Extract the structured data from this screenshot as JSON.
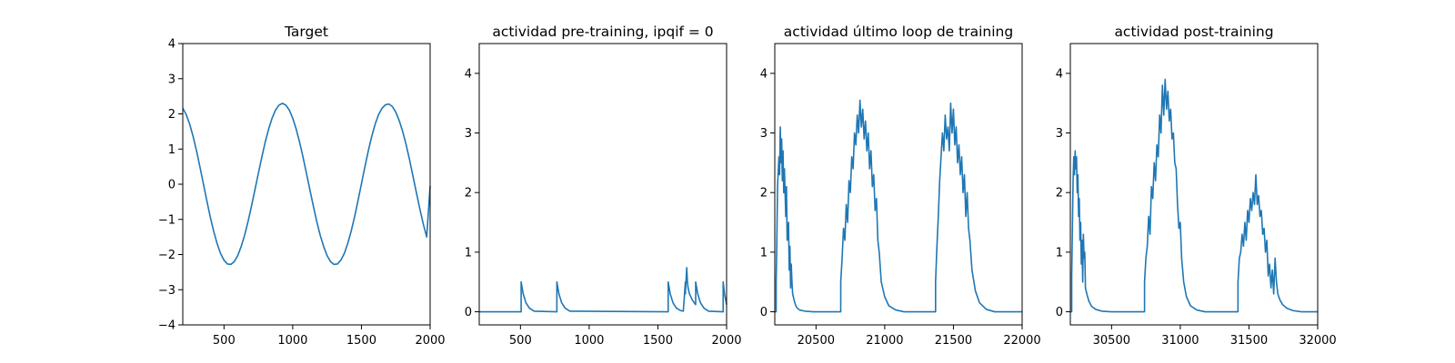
{
  "chart_data": [
    {
      "type": "line",
      "title": "Target",
      "xlabel": "",
      "ylabel": "",
      "xlim": [
        200,
        2000
      ],
      "ylim": [
        -4,
        4
      ],
      "xticks": [
        500,
        1000,
        1500,
        2000
      ],
      "xtick_labels": [
        "500",
        "1000",
        "1500",
        "2000"
      ],
      "yticks": [
        -4,
        -3,
        -2,
        -1,
        0,
        1,
        2,
        3,
        4
      ],
      "ytick_labels": [
        "−4",
        "−3",
        "−2",
        "−1",
        "0",
        "1",
        "2",
        "3",
        "4"
      ],
      "grid": false,
      "legend": "none",
      "color": "#1f77b4",
      "series": [
        {
          "x": [
            200,
            225,
            250,
            275,
            300,
            325,
            350,
            375,
            400,
            425,
            450,
            475,
            500,
            525,
            550,
            575,
            600,
            625,
            650,
            675,
            700,
            725,
            750,
            775,
            800,
            825,
            850,
            875,
            900,
            925,
            950,
            975,
            1000,
            1025,
            1050,
            1075,
            1100,
            1125,
            1150,
            1175,
            1200,
            1225,
            1250,
            1275,
            1300,
            1325,
            1350,
            1375,
            1400,
            1425,
            1450,
            1475,
            1500,
            1525,
            1550,
            1575,
            1600,
            1625,
            1650,
            1675,
            1700,
            1725,
            1750,
            1775,
            1800,
            1825,
            1850,
            1875,
            1900,
            1925,
            1950,
            1975,
            2000
          ],
          "y": [
            2.16,
            1.98,
            1.71,
            1.36,
            0.95,
            0.49,
            0.01,
            -0.47,
            -0.93,
            -1.34,
            -1.69,
            -1.97,
            -2.16,
            -2.27,
            -2.28,
            -2.2,
            -2.03,
            -1.77,
            -1.45,
            -1.06,
            -0.62,
            -0.16,
            0.31,
            0.77,
            1.2,
            1.57,
            1.88,
            2.11,
            2.25,
            2.3,
            2.25,
            2.11,
            1.88,
            1.57,
            1.2,
            0.77,
            0.31,
            -0.16,
            -0.62,
            -1.06,
            -1.45,
            -1.77,
            -2.03,
            -2.2,
            -2.28,
            -2.27,
            -2.16,
            -1.97,
            -1.69,
            -1.34,
            -0.93,
            -0.47,
            0.01,
            0.49,
            0.95,
            1.36,
            1.71,
            1.98,
            2.16,
            2.26,
            2.28,
            2.21,
            2.05,
            1.81,
            1.5,
            1.13,
            0.7,
            0.23,
            -0.24,
            -0.7,
            -1.13,
            -1.5,
            -0.05
          ]
        }
      ]
    },
    {
      "type": "line",
      "title": "actividad pre-training, ipqif = 0",
      "xlabel": "",
      "ylabel": "",
      "xlim": [
        200,
        2000
      ],
      "ylim": [
        -0.22,
        4.5
      ],
      "xticks": [
        500,
        1000,
        1500,
        2000
      ],
      "xtick_labels": [
        "500",
        "1000",
        "1500",
        "2000"
      ],
      "yticks": [
        0,
        1,
        2,
        3,
        4
      ],
      "ytick_labels": [
        "0",
        "1",
        "2",
        "3",
        "4"
      ],
      "grid": false,
      "legend": "none",
      "color": "#1f77b4",
      "series": [
        {
          "x": [
            200,
            505,
            505,
            520,
            540,
            565,
            600,
            765,
            765,
            780,
            800,
            825,
            860,
            1575,
            1575,
            1590,
            1610,
            1635,
            1665,
            1685,
            1700,
            1700,
            1710,
            1715,
            1720,
            1730,
            1750,
            1765,
            1775,
            1775,
            1790,
            1810,
            1835,
            1870,
            1975,
            1975,
            1985,
            1995,
            2000
          ],
          "y": [
            0,
            0,
            0.5,
            0.3,
            0.15,
            0.06,
            0.01,
            0,
            0.5,
            0.3,
            0.15,
            0.06,
            0.01,
            0,
            0.5,
            0.3,
            0.15,
            0.06,
            0.02,
            0.01,
            0.5,
            0.3,
            0.74,
            0.5,
            0.4,
            0.3,
            0.2,
            0.15,
            0.12,
            0.5,
            0.3,
            0.15,
            0.06,
            0.01,
            0,
            0.5,
            0.3,
            0.18,
            0.12
          ]
        }
      ]
    },
    {
      "type": "line",
      "title": "actividad último loop de training",
      "xlabel": "",
      "ylabel": "",
      "xlim": [
        20200,
        22000
      ],
      "ylim": [
        -0.22,
        4.5
      ],
      "xticks": [
        20500,
        21000,
        21500,
        22000
      ],
      "xtick_labels": [
        "20500",
        "21000",
        "21500",
        "22000"
      ],
      "yticks": [
        0,
        1,
        2,
        3,
        4
      ],
      "ytick_labels": [
        "0",
        "1",
        "2",
        "3",
        "4"
      ],
      "grid": false,
      "legend": "none",
      "color": "#1f77b4",
      "series": [
        {
          "x": [
            20200,
            20210,
            20210,
            20215,
            20220,
            20230,
            20235,
            20240,
            20245,
            20250,
            20255,
            20260,
            20265,
            20270,
            20280,
            20285,
            20290,
            20300,
            20305,
            20310,
            20315,
            20320,
            20325,
            20330,
            20340,
            20350,
            20360,
            20380,
            20420,
            20480,
            20680,
            20680,
            20690,
            20700,
            20710,
            20720,
            20730,
            20740,
            20750,
            20760,
            20770,
            20780,
            20790,
            20800,
            20810,
            20820,
            20830,
            20840,
            20850,
            20860,
            20870,
            20880,
            20890,
            20900,
            20910,
            20920,
            20930,
            20940,
            20950,
            20960,
            20975,
            21000,
            21030,
            21080,
            21140,
            21370,
            21370,
            21380,
            21390,
            21400,
            21410,
            21420,
            21430,
            21440,
            21450,
            21460,
            21470,
            21480,
            21490,
            21500,
            21510,
            21520,
            21530,
            21540,
            21550,
            21560,
            21570,
            21580,
            21590,
            21600,
            21610,
            21620,
            21635,
            21660,
            21690,
            21740,
            21800,
            22000
          ],
          "y": [
            0,
            0,
            0.5,
            1.2,
            2.1,
            2.6,
            2.3,
            3.1,
            2.5,
            2.9,
            2.2,
            2.7,
            2.0,
            2.4,
            1.6,
            2.1,
            1.2,
            1.5,
            0.7,
            1.1,
            0.4,
            0.8,
            0.5,
            0.3,
            0.2,
            0.12,
            0.07,
            0.03,
            0.01,
            0,
            0,
            0.5,
            0.9,
            1.4,
            1.2,
            1.8,
            1.5,
            2.2,
            2.0,
            2.6,
            2.4,
            3.0,
            2.8,
            3.3,
            3.0,
            3.55,
            3.1,
            3.4,
            2.9,
            3.2,
            2.7,
            3.0,
            2.4,
            2.7,
            2.1,
            2.3,
            1.7,
            1.9,
            1.2,
            1.0,
            0.5,
            0.25,
            0.1,
            0.03,
            0,
            0,
            0.5,
            1.1,
            1.6,
            2.2,
            2.6,
            3.0,
            2.7,
            3.3,
            2.9,
            3.1,
            2.7,
            3.5,
            3.0,
            3.4,
            2.8,
            3.1,
            2.5,
            2.8,
            2.3,
            2.6,
            2.0,
            2.3,
            1.6,
            2.0,
            1.4,
            1.2,
            0.7,
            0.35,
            0.15,
            0.04,
            0,
            0
          ]
        }
      ]
    },
    {
      "type": "line",
      "title": "actividad post-training",
      "xlabel": "",
      "ylabel": "",
      "xlim": [
        30200,
        32000
      ],
      "ylim": [
        -0.22,
        4.5
      ],
      "xticks": [
        30500,
        31000,
        31500,
        32000
      ],
      "xtick_labels": [
        "30500",
        "31000",
        "31500",
        "32000"
      ],
      "yticks": [
        0,
        1,
        2,
        3,
        4
      ],
      "ytick_labels": [
        "0",
        "1",
        "2",
        "3",
        "4"
      ],
      "grid": false,
      "legend": "none",
      "color": "#1f77b4",
      "series": [
        {
          "x": [
            30200,
            30210,
            30210,
            30215,
            30220,
            30225,
            30230,
            30235,
            30240,
            30245,
            30250,
            30255,
            30260,
            30265,
            30270,
            30275,
            30280,
            30285,
            30290,
            30295,
            30300,
            30305,
            30310,
            30320,
            30335,
            30355,
            30385,
            30430,
            30500,
            30740,
            30740,
            30750,
            30760,
            30770,
            30780,
            30790,
            30800,
            30810,
            30820,
            30830,
            30840,
            30850,
            30860,
            30870,
            30880,
            30890,
            30900,
            30910,
            30920,
            30930,
            30940,
            30950,
            30960,
            30970,
            30980,
            30990,
            31000,
            31010,
            31025,
            31045,
            31075,
            31120,
            31180,
            31420,
            31420,
            31430,
            31440,
            31450,
            31460,
            31470,
            31480,
            31490,
            31500,
            31510,
            31520,
            31530,
            31540,
            31550,
            31560,
            31570,
            31580,
            31590,
            31600,
            31610,
            31620,
            31630,
            31640,
            31650,
            31660,
            31670,
            31680,
            31690,
            31700,
            31710,
            31725,
            31745,
            31775,
            31820,
            31880,
            32000
          ],
          "y": [
            0,
            0,
            0.6,
            1.4,
            2.2,
            2.6,
            2.3,
            2.7,
            2.4,
            2.6,
            2.0,
            2.3,
            1.6,
            1.9,
            1.2,
            1.5,
            0.8,
            1.2,
            0.5,
            1.3,
            0.9,
            1.0,
            0.4,
            0.3,
            0.18,
            0.09,
            0.04,
            0.01,
            0,
            0,
            0.5,
            0.9,
            1.1,
            1.6,
            1.3,
            2.1,
            1.9,
            2.5,
            2.2,
            2.8,
            2.6,
            3.3,
            3.0,
            3.8,
            3.3,
            3.9,
            3.4,
            3.7,
            3.2,
            3.4,
            2.9,
            3.0,
            2.5,
            2.4,
            1.8,
            1.4,
            1.5,
            0.9,
            0.5,
            0.25,
            0.1,
            0.03,
            0,
            0,
            0.5,
            0.9,
            1.0,
            1.3,
            1.1,
            1.5,
            1.2,
            1.7,
            1.5,
            1.9,
            1.7,
            2.0,
            1.8,
            2.3,
            1.8,
            1.95,
            1.6,
            1.7,
            1.3,
            1.4,
            1.0,
            1.2,
            0.6,
            0.8,
            0.4,
            0.7,
            0.3,
            0.9,
            0.5,
            0.3,
            0.2,
            0.12,
            0.06,
            0.02,
            0,
            0
          ]
        }
      ]
    }
  ]
}
